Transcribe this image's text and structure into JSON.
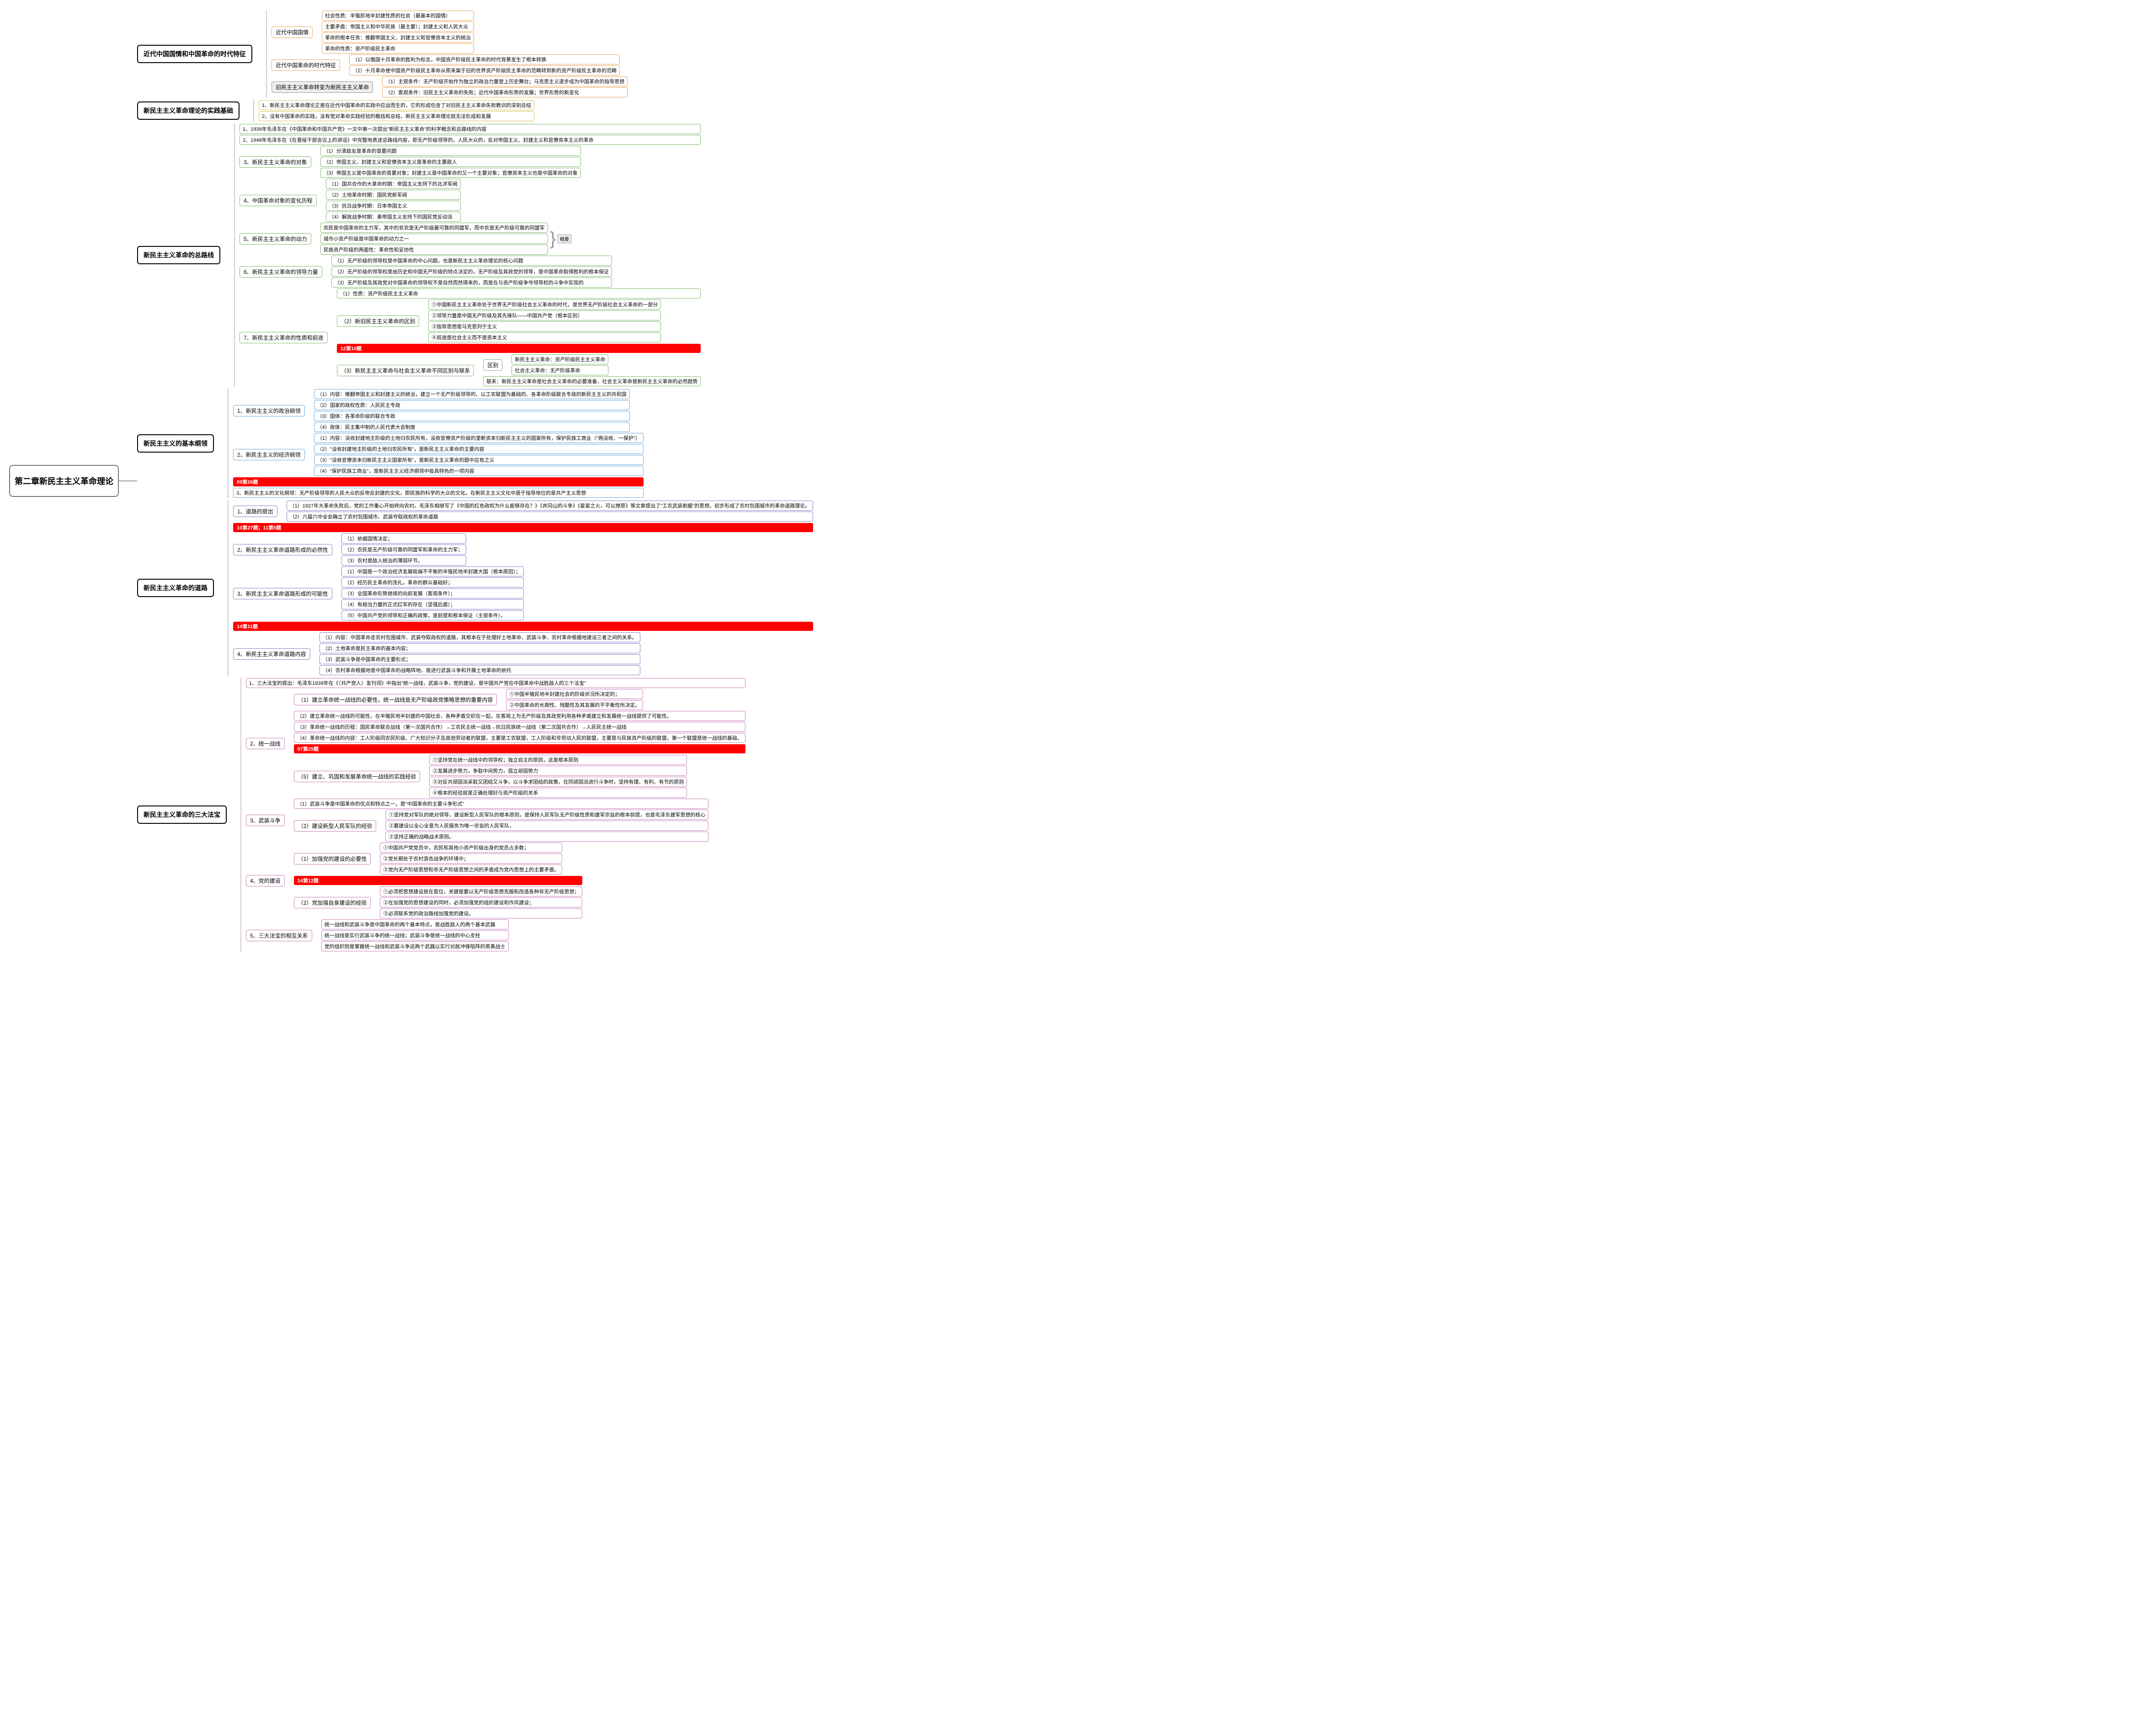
{
  "root": "第二章新民主主义革命理论",
  "colors": {
    "orange": "#e8a55c",
    "yellow": "#d4c25a",
    "green": "#7fb96e",
    "blue": "#6fa8d6",
    "purple": "#8b7fc7",
    "pink": "#c77fb9",
    "gray": "#999999"
  },
  "tags": {
    "t12_10": "12第10题",
    "t09_26": "09第26题",
    "t10_27": "10第27题；11第5题",
    "t14_11": "14第11题",
    "t07_25": "07第25题",
    "t14_12": "14第12题"
  },
  "s1": {
    "title": "近代中国国情和中国革命的时代特征",
    "n1": "近代中国国情",
    "n1_1": "社会性质：半殖民地半封建性质的社会（最基本的国情）",
    "n1_2": "主要矛盾：帝国主义和中华民族（最主要）；封建主义和人民大众",
    "n1_3": "革命的根本任务：推翻帝国主义、封建主义和官僚资本主义的统治",
    "n1_4": "革命的性质：资产阶级民主革命",
    "n2": "近代中国革命的时代特征",
    "n2_1": "（1）以俄国十月革命的胜利为标志，中国资产阶级民主革命的时代背景发生了根本转换",
    "n2_2": "（2）十月革命使中国资产阶级民主革命从原来属于旧的世界资产阶级民主革命的范畴转到新的资产阶级民主革命的范畴",
    "n3": "旧民主主义革命转变为新民主主义革命",
    "n3_1": "（1）主观条件：无产阶级开始作为独立的政治力量登上历史舞台；马克思主义逐步成为中国革命的指导思想",
    "n3_2": "（2）客观条件：旧民主主义革命的失败；近代中国革命形势的发展；世界形势的新变化"
  },
  "s2": {
    "title": "新民主主义革命理论的实践基础",
    "n1": "1、新民主主义革命理论正是在近代中国革命的实践中应运而生的，它的形成包含了对旧民主主义革命失败教训的深刻总结",
    "n2": "2、没有中国革命的实践，没有党对革命实践经验的概括和总结，新民主主义革命理论就无法形成和发展"
  },
  "s3": {
    "title": "新民主主义革命的总路线",
    "n1": "1、1939年毛泽东在《中国革命和中国共产党》一文中第一次提出\"新民主主义革命\"的科学概念和总路线的内容",
    "n2": "2、1948年毛泽东在《在晋绥干部会议上的讲话》中完整地表述总路线内容，即无产阶级领导的，人民大众的，反对帝国主义、封建主义和官僚资本主义的革命",
    "n3": "3、新民主主义革命的对象",
    "n3_1": "（1）分清敌友是革命的首要问题",
    "n3_2": "（2）帝国主义、封建主义和官僚资本主义是革命的主要敌人",
    "n3_3": "（3）帝国主义是中国革命的首要对象；封建主义是中国革命的又一个主要对象；官僚资本主义也是中国革命的对象",
    "n4": "4、中国革命对象的变化历程",
    "n4_1": "（1）国共合作的大革命时期：帝国主义支持下的北洋军阀",
    "n4_2": "（2）土地革命时期：国民党新军阀",
    "n4_3": "（3）抗日战争时期：日本帝国主义",
    "n4_4": "（4）解放战争时期：美帝国主义支持下的国民党反动派",
    "n5": "5、新民主主义革命的动力",
    "n5_1": "农民是中国革命的主力军，其中的贫农是无产阶级最可靠的同盟军，而中农是无产阶级可靠的同盟军",
    "n5_2": "城市小资产阶级是中国革命的动力之一",
    "n5_3": "民族资产阶级的两面性：革命性和妥协性",
    "n5_tag": "概要",
    "n6": "6、新民主主义革命的领导力量",
    "n6_1": "（1）无产阶级的领导权是中国革命的中心问题，也是新民主主义革命理论的核心问题",
    "n6_2": "（2）无产阶级的领导权是由历史和中国无产阶级的特点决定的，无产阶级及其政党的领导，是中国革命取得胜利的根本保证",
    "n6_3": "（3）无产阶级及其政党对中国革命的领导权不是自然而然得来的，而是在与资产阶级争夺领导权的斗争中实现的",
    "n7": "7、新民主主义革命的性质和前途",
    "n7_1": "（1）性质：资产阶级民主主义革命",
    "n7_2": "（2）新旧民主主义革命的区别",
    "n7_2_1": "①中国新民主主义革命处于世界无产阶级社会主义革命的时代，是世界无产阶级社会主义革命的一部分",
    "n7_2_2": "②领导力量是中国无产阶级及其先锋队——中国共产党（根本区别）",
    "n7_2_3": "③指导思想是马克思列宁主义",
    "n7_2_4": "④前途是社会主义而不是资本主义",
    "n7_3": "（3）新民主主义革命与社会主义革命不同区别与联系",
    "n7_3_1": "区别",
    "n7_3_1a": "新民主主义革命：资产阶级民主主义革命",
    "n7_3_1b": "社会主义革命：无产阶级革命",
    "n7_3_2": "联系：新民主主义革命是社会主义革命的必要准备，社会主义革命是新民主主义革命的必然趋势"
  },
  "s4": {
    "title": "新民主主义的基本纲领",
    "n1": "1、新民主主义的政治纲领",
    "n1_1": "（1）内容：推翻帝国主义和封建主义的统治，建立一个无产阶级领导的、以工农联盟为基础的、各革命阶级联合专政的新民主主义的共和国",
    "n1_2": "（2）国家的政权性质：人民民主专政",
    "n1_3": "（3）国体：各革命阶级的联合专政",
    "n1_4": "（4）政体：民主集中制的人民代表大会制度",
    "n2": "2、新民主主义的经济纲领",
    "n2_1": "（1）内容：没收封建地主阶级的土地归农民所有，没收官僚资产阶级的垄断资本归新民主主义的国家所有，保护民族工商业（\"两没收、一保护\"）",
    "n2_2": "（2）\"没收封建地主阶级的土地归农民所有\"，是新民主主义革命的主要内容",
    "n2_3": "（3）\"没收官僚资本归新民主主义国家所有\"，是新民主主义革命的题中应有之义",
    "n2_4": "（4）\"保护民族工商业\"，是新民主主义经济纲领中极具特色的一项内容",
    "n3": "3、新民主主义的文化纲领：无产阶级领导的人民大众的反帝反封建的文化，即民族的科学的大众的文化。在新民主主义文化中居于指导地位的是共产主义思想"
  },
  "s5": {
    "title": "新民主主义革命的道路",
    "n1": "1、道路的提出",
    "n1_1": "（1）1927年大革命失败后，党的工作重心开始转向农村。毛泽东相继写了《中国的红色政权为什么能够存在？》《井冈山的斗争》《星星之火，可以燎原》等文章提出了\"工农武装割据\"的思想。初步形成了农村包围城市的革命道路理论。",
    "n1_2": "（2）六届六中全会确立了农村包围城市、武装夺取政权的革命道路",
    "n2": "2、新民主主义革命道路形成的必然性",
    "n2_1": "（1）依据国情决定；",
    "n2_2": "（2）农民是无产阶级可靠的同盟军和革命的主力军；",
    "n2_3": "（3）农村是敌人统治的薄弱环节。",
    "n3": "3、新民主主义革命道路形成的可能性",
    "n3_1": "（1）中国是一个政治经济发展极端不平衡的半殖民地半封建大国（根本原因）；",
    "n3_2": "（2）经历民主革命的洗礼，革命的群众基础好；",
    "n3_3": "（3）全国革命形势继续的向前发展（客观条件）；",
    "n3_4": "（4）有相当力量的正式红军的存在（坚强后盾）；",
    "n3_5": "（5）中国共产党的领导和正确的政策，是前提和根本保证（主观条件）。",
    "n4": "4、新民主主义革命道路内容",
    "n4_1": "（1）内容：中国革命走农村包围城市、武装夺取政权的道路，其根本在于处理好土地革命、武装斗争、农村革命根据地建设三者之间的关系。",
    "n4_2": "（2）土地革命是民主革命的基本内容；",
    "n4_3": "（3）武装斗争是中国革命的主要形式；",
    "n4_4": "（4）农村革命根据地是中国革命的战略阵地，是进行武装斗争和开展土地革命的依托"
  },
  "s6": {
    "title": "新民主主义革命的三大法宝",
    "n1": "1、三大法宝的提出：毛泽东1939年在《〈共产党人〉发刊词》中指出\"统一战线，武装斗争，党的建设，是中国共产党在中国革命中战胜敌人的三个法宝\"",
    "n2": "2、统一战线",
    "n2_1": "（1）建立革命统一战线的必要性，统一战线是无产阶级政党策略思想的重要内容",
    "n2_1a": "①中国半殖民地半封建社会的阶级状况所决定的；",
    "n2_1b": "②中国革命的长期性、残酷性及其发展的不平衡性所决定。",
    "n2_2": "（2）建立革命统一战线的可能性，在半殖民地半封建的中国社会，各种矛盾交织在一起，在客观上为无产阶级及其政党利用各种矛盾建立和发展统一战线提供了可能性。",
    "n2_3": "（3）革命统一战线的历程：国民革命联合战线（第一次国共合作）→工农民主统一战线→抗日民族统一战线（第二次国共合作）→人民民主统一战线",
    "n2_4": "（4）革命统一战线的内容：工人阶级同农民阶级、广大知识分子及其他劳动者的联盟，主要是工农联盟，工人阶级和非劳动人民的联盟，主要是与民族资产阶级的联盟，第一个联盟是统一战线的基础。",
    "n2_5": "（5）建立、巩固和发展革命统一战线的实践经验",
    "n2_5_1": "①坚持党在统一战线中的领导权；独立自主的原则，这是根本原则",
    "n2_5_2": "②发展进步势力，争取中间势力，孤立顽固势力",
    "n2_5_3": "③对反共顽固派采取又团结又斗争，以斗争求团结的政策，在同顽固派进行斗争时，坚持有理、有利、有节的原则",
    "n2_5_4": "④根本的经验就是正确处理好与资产阶级的关系",
    "n3": "3、武装斗争",
    "n3_1": "（1）武装斗争是中国革命的优点和特点之一，是\"中国革命的主要斗争形式\"",
    "n3_2": "（2）建设新型人民军队的经验",
    "n3_2_1": "①坚持党对军队的绝对领导，建设新型人民军队的根本原则，是保持人民军队无产阶级性质和建军宗旨的根本前提，也是毛泽东建军思想的核心",
    "n3_2_2": "②要建设以全心全意为人民服务为唯一宗旨的人民军队，",
    "n3_2_3": "③坚持正确的战略战术原则。",
    "n4": "4、党的建设",
    "n4_1": "（1）加强党的建设的必要性",
    "n4_1_1": "①中国共产党党员中，农民和其他小资产阶级出身的党员占多数；",
    "n4_1_2": "②党长期处于农村游击战争的环境中；",
    "n4_1_3": "③党内无产阶级思想和非无产阶级思想之间的矛盾成为党内思想上的主要矛盾。",
    "n4_2": "（2）党加强自身建设的经验",
    "n4_2_1": "①必须把思想建设放在首位，关键是要以无产阶级思想克服和改造各种非无产阶级思想；",
    "n4_2_2": "②在加强党的思想建设的同时，必须加强党的组织建设和作风建设；",
    "n4_2_3": "③必须联系党的政治路线加强党的建设。",
    "n5": "5、三大法宝的相互关系",
    "n5_1": "统一战线和武装斗争是中国革命的两个基本特点，是战胜敌人的两个基本武器",
    "n5_2": "统一战线是实行武装斗争的统一战线；武装斗争是统一战线的中心支柱",
    "n5_3": "党的组织则是掌握统一战线和武装斗争这两个武器以实行对敌冲锋陷阵的英勇战士"
  }
}
